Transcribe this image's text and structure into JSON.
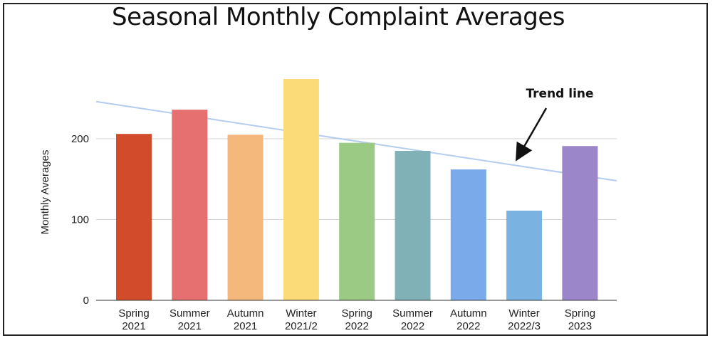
{
  "chart_data": {
    "type": "bar",
    "title": "Seasonal Monthly Complaint Averages",
    "ylabel": "Monthly Averages",
    "xlabel": "",
    "ylim": [
      0,
      270
    ],
    "yticks": [
      0,
      100,
      200
    ],
    "grid": true,
    "categories": [
      [
        "Spring",
        "2021"
      ],
      [
        "Summer",
        "2021"
      ],
      [
        "Autumn",
        "2021"
      ],
      [
        "Winter",
        "2021/2"
      ],
      [
        "Spring",
        "2022"
      ],
      [
        "Summer",
        "2022"
      ],
      [
        "Autumn",
        "2022"
      ],
      [
        "Winter",
        "2022/3"
      ],
      [
        "Spring",
        "2023"
      ]
    ],
    "values": [
      206,
      236,
      205,
      274,
      195,
      185,
      162,
      111,
      191
    ],
    "colors": [
      "#d24c2b",
      "#e67070",
      "#f4b77c",
      "#fbdb78",
      "#9bca85",
      "#7fb1b6",
      "#7aaaea",
      "#7ab2e1",
      "#9b86c9"
    ],
    "trend_line": {
      "start_value": 246,
      "end_value": 148,
      "color": "#b3ccf0"
    },
    "annotation": {
      "text": "Trend line"
    }
  }
}
